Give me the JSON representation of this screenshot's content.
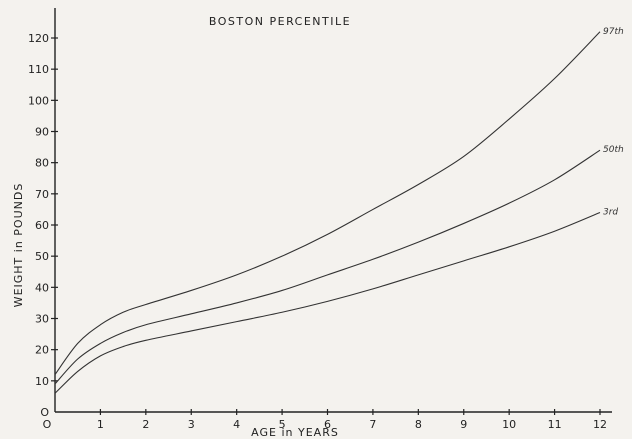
{
  "chart_data": {
    "type": "line",
    "title": "BOSTON PERCENTILE",
    "xlabel": "AGE in YEARS",
    "ylabel": "WEIGHT in POUNDS",
    "xlim": [
      0,
      12
    ],
    "ylim": [
      0,
      120
    ],
    "xticks": [
      0,
      1,
      2,
      3,
      4,
      5,
      6,
      7,
      8,
      9,
      10,
      11,
      12
    ],
    "yticks": [
      0,
      10,
      20,
      30,
      40,
      50,
      60,
      70,
      80,
      90,
      100,
      110,
      120
    ],
    "xtick_labels": [
      "O",
      "1",
      "2",
      "3",
      "4",
      "5",
      "6",
      "7",
      "8",
      "9",
      "10",
      "11",
      "12"
    ],
    "ytick_labels": [
      "O",
      "10",
      "20",
      "30",
      "40",
      "50",
      "60",
      "70",
      "80",
      "90",
      "100",
      "110",
      "120"
    ],
    "grid": false,
    "series": [
      {
        "name": "97th",
        "x": [
          0,
          0.5,
          1,
          1.5,
          2,
          3,
          4,
          5,
          6,
          7,
          8,
          9,
          10,
          11,
          12
        ],
        "y": [
          12,
          22,
          28,
          32,
          34.5,
          39,
          44,
          50,
          57,
          65,
          73,
          82,
          94,
          107,
          122
        ]
      },
      {
        "name": "50th",
        "x": [
          0,
          0.5,
          1,
          1.5,
          2,
          3,
          4,
          5,
          6,
          7,
          8,
          9,
          10,
          11,
          12
        ],
        "y": [
          9,
          17,
          22,
          25.5,
          28,
          31.5,
          35,
          39,
          44,
          49,
          54.5,
          60.5,
          67,
          74.5,
          84
        ]
      },
      {
        "name": "3rd",
        "x": [
          0,
          0.5,
          1,
          1.5,
          2,
          3,
          4,
          5,
          6,
          7,
          8,
          9,
          10,
          11,
          12
        ],
        "y": [
          6,
          13,
          18,
          21,
          23,
          26,
          29,
          32,
          35.5,
          39.5,
          44,
          48.5,
          53,
          58,
          64
        ]
      }
    ]
  }
}
